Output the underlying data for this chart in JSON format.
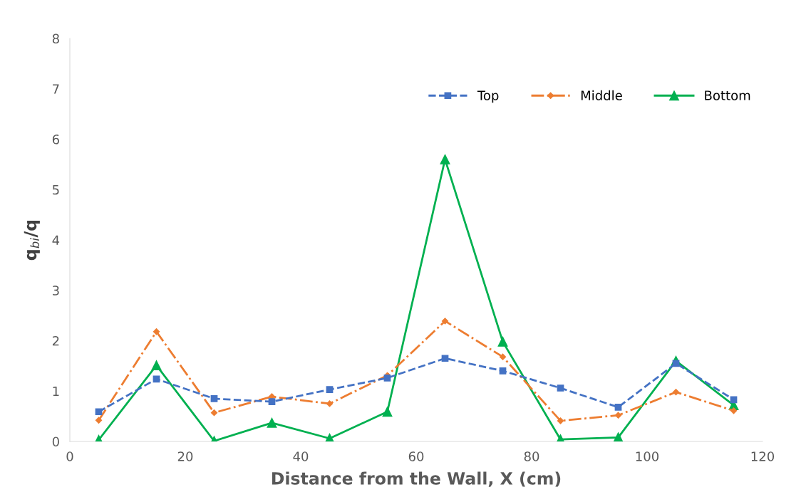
{
  "chart_data": {
    "type": "line",
    "xlabel": "Distance from the Wall, X (cm)",
    "ylabel": "q$_{bi}$/q",
    "x": [
      5,
      15,
      25,
      35,
      45,
      55,
      65,
      75,
      85,
      95,
      105,
      115
    ],
    "xlim": [
      0,
      120
    ],
    "xticks": [
      0,
      20,
      40,
      60,
      80,
      100,
      120
    ],
    "ylim": [
      0,
      8
    ],
    "yticks": [
      0,
      1,
      2,
      3,
      4,
      5,
      6,
      7,
      8
    ],
    "grid": false,
    "legend": "top right",
    "series": [
      {
        "name": "Top",
        "color": "#4472c4",
        "marker": "square",
        "line_style": "dashed",
        "values": [
          0.59,
          1.24,
          0.85,
          0.79,
          1.03,
          1.26,
          1.65,
          1.4,
          1.06,
          0.68,
          1.55,
          0.83
        ]
      },
      {
        "name": "Middle",
        "color": "#ed7d31",
        "marker": "diamond",
        "line_style": "dashdot",
        "values": [
          0.42,
          2.18,
          0.57,
          0.89,
          0.75,
          1.31,
          2.39,
          1.68,
          0.41,
          0.52,
          0.98,
          0.61
        ]
      },
      {
        "name": "Bottom",
        "color": "#00b050",
        "marker": "triangle",
        "line_style": "solid",
        "values": [
          0.03,
          1.51,
          0.01,
          0.37,
          0.06,
          0.59,
          5.6,
          1.98,
          0.04,
          0.08,
          1.6,
          0.72
        ]
      }
    ]
  }
}
